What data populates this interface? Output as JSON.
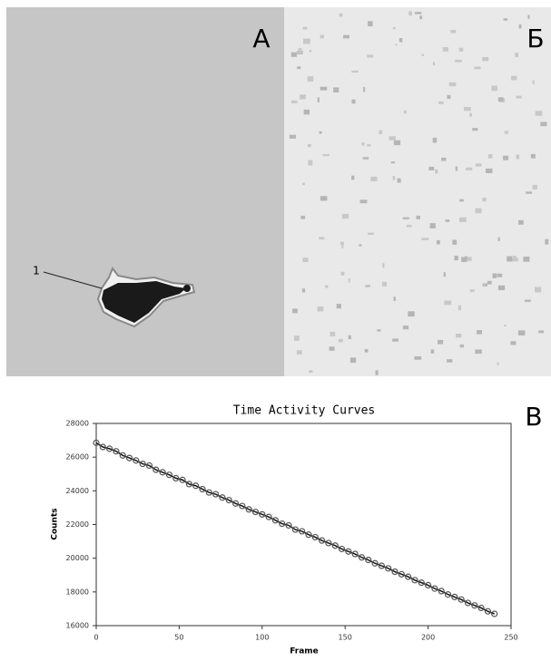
{
  "panels": {
    "a": {
      "label": "А",
      "annotation": "1"
    },
    "b": {
      "label": "Б"
    },
    "c": {
      "label": "В"
    }
  },
  "chart_data": {
    "type": "scatter",
    "title": "Time Activity Curves",
    "x_label": "Frame",
    "y_label": "Counts",
    "xlim": [
      0,
      250
    ],
    "xticks": [
      0,
      50,
      100,
      150,
      200,
      250
    ],
    "ylim": [
      16000,
      28000
    ],
    "yticks": [
      16000,
      18000,
      20000,
      22000,
      24000,
      26000,
      28000
    ],
    "x": [
      0,
      4,
      8,
      12,
      16,
      20,
      24,
      28,
      32,
      36,
      40,
      44,
      48,
      52,
      56,
      60,
      64,
      68,
      72,
      76,
      80,
      84,
      88,
      92,
      96,
      100,
      104,
      108,
      112,
      116,
      120,
      124,
      128,
      132,
      136,
      140,
      144,
      148,
      152,
      156,
      160,
      164,
      168,
      172,
      176,
      180,
      184,
      188,
      192,
      196,
      200,
      204,
      208,
      212,
      216,
      220,
      224,
      228,
      232,
      236,
      240
    ],
    "series": [
      {
        "color": "#555555",
        "values": [
          26850,
          26600,
          26500,
          26350,
          26100,
          25950,
          25800,
          25600,
          25500,
          25250,
          25100,
          24950,
          24750,
          24650,
          24400,
          24300,
          24100,
          23900,
          23800,
          23600,
          23450,
          23250,
          23100,
          22900,
          22750,
          22600,
          22450,
          22250,
          22050,
          21950,
          21700,
          21600,
          21400,
          21250,
          21050,
          20900,
          20750,
          20550,
          20400,
          20250,
          20050,
          19900,
          19700,
          19550,
          19400,
          19200,
          19050,
          18900,
          18700,
          18550,
          18400,
          18200,
          18050,
          17850,
          17700,
          17550,
          17350,
          17200,
          17050,
          16850,
          16700
        ]
      }
    ]
  }
}
